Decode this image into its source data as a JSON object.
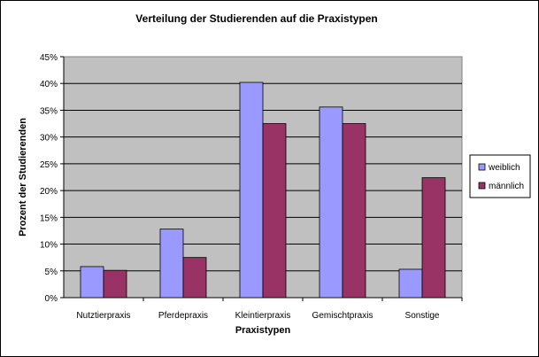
{
  "chart_data": {
    "type": "bar",
    "title": "Verteilung der Studierenden auf die Praxistypen",
    "xlabel": "Praxistypen",
    "ylabel": "Prozent der Studierenden",
    "categories": [
      "Nutztierpraxis",
      "Pferdepraxis",
      "Kleintierpraxis",
      "Gemischtpraxis",
      "Sonstige"
    ],
    "series": [
      {
        "name": "weiblich",
        "color": "#9999FF",
        "values": [
          5.8,
          12.8,
          40.2,
          35.6,
          5.3
        ]
      },
      {
        "name": "männlich",
        "color": "#993366",
        "values": [
          5.1,
          7.5,
          32.5,
          32.5,
          22.4
        ]
      }
    ],
    "ylim": [
      0,
      45
    ],
    "yticks": [
      "0%",
      "5%",
      "10%",
      "15%",
      "20%",
      "25%",
      "30%",
      "35%",
      "40%",
      "45%"
    ],
    "grid": true,
    "legend_position": "right",
    "plot_background": "#C0C0C0"
  }
}
